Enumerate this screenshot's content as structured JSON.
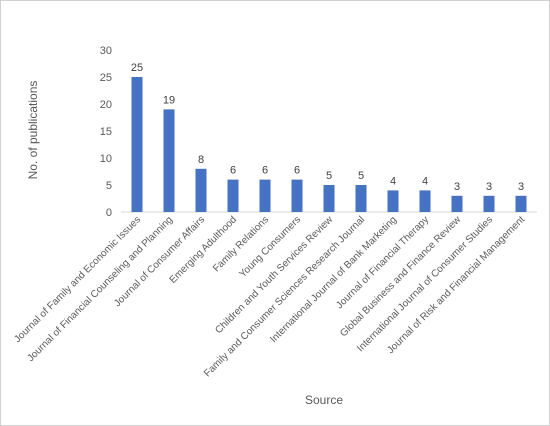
{
  "chart_data": {
    "type": "bar",
    "title": "",
    "xlabel": "Source",
    "ylabel": "No. of publications",
    "ylim": [
      0,
      30
    ],
    "yticks": [
      0,
      5,
      10,
      15,
      20,
      25,
      30
    ],
    "grid": false,
    "legend": "none",
    "bar_color": "#4472C4",
    "categories": [
      "Journal of Family and Economic Issues",
      "Journal of Financial Counseling and Planning",
      "Journal of Consumer Affairs",
      "Emerging Adulthood",
      "Family Relations",
      "Young Consumers",
      "Children and Youth Services Review",
      "Family and Consumer Sciences Research Journal",
      "International Journal of Bank Marketing",
      "Journal of Financial Therapy",
      "Global Business and Finance Review",
      "International Journal of Consumer Studies",
      "Journal of Risk and Financial Management"
    ],
    "values": [
      25,
      19,
      8,
      6,
      6,
      6,
      5,
      5,
      4,
      4,
      3,
      3,
      3
    ]
  }
}
